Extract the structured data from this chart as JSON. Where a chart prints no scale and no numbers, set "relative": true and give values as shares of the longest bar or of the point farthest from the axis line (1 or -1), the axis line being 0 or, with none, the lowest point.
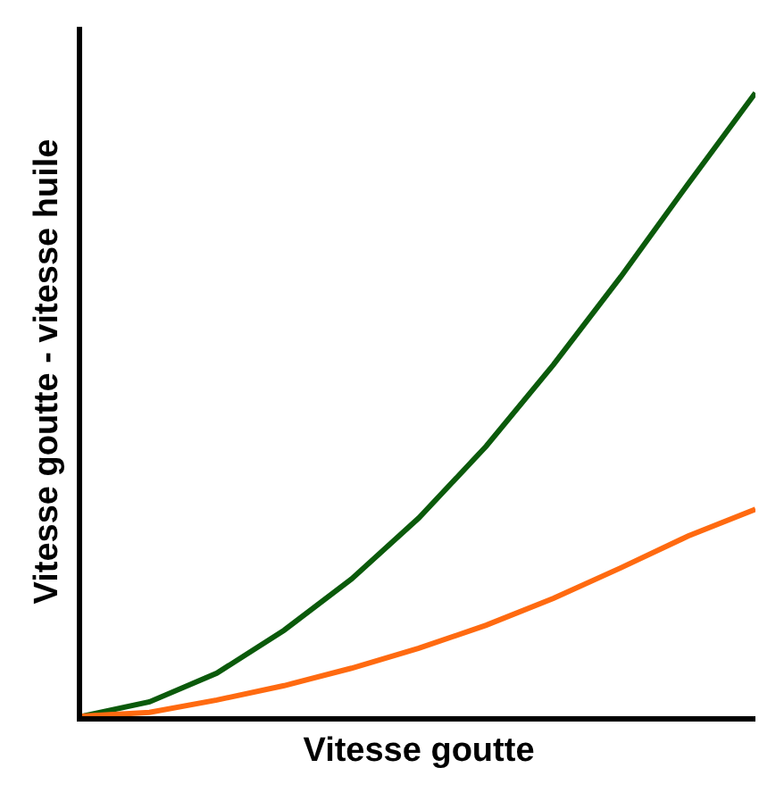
{
  "chart_data": {
    "type": "line",
    "relative": true,
    "xlabel": "Vitesse goutte",
    "ylabel": "Vitesse goutte - vitesse huile",
    "categories": [
      null,
      null,
      null,
      null,
      null,
      null,
      null,
      null,
      null,
      null,
      null
    ],
    "series": [
      {
        "color": "#0b5a0b",
        "values": [
          0,
          0.023,
          0.069,
          0.138,
          0.22,
          0.318,
          0.433,
          0.564,
          0.705,
          0.854,
          1
        ]
      },
      {
        "color": "#ff6a10",
        "values": [
          0,
          0.006,
          0.026,
          0.049,
          0.077,
          0.109,
          0.146,
          0.189,
          0.238,
          0.289,
          0.332
        ]
      }
    ],
    "marker": "none",
    "line_style": "solid"
  }
}
